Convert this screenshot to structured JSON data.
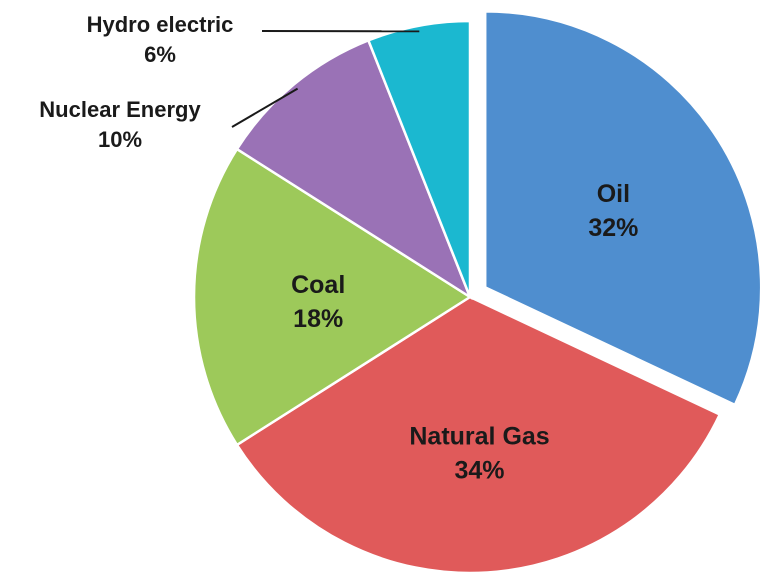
{
  "chart_data": {
    "type": "pie",
    "title": "",
    "slices": [
      {
        "label": "Oil",
        "value": 32,
        "value_label": "32%",
        "color": "#4f8ecf",
        "exploded": true
      },
      {
        "label": "Natural Gas",
        "value": 34,
        "value_label": "34%",
        "color": "#e05a5a",
        "exploded": false
      },
      {
        "label": "Coal",
        "value": 18,
        "value_label": "18%",
        "color": "#9dc95a",
        "exploded": false
      },
      {
        "label": "Nuclear Energy",
        "value": 10,
        "value_label": "10%",
        "color": "#9a72b6",
        "exploded": false
      },
      {
        "label": "Hydro electric",
        "value": 6,
        "value_label": "6%",
        "color": "#1bb8d0",
        "exploded": false
      }
    ],
    "start": "12 o'clock",
    "direction": "clockwise",
    "legend": "none"
  }
}
